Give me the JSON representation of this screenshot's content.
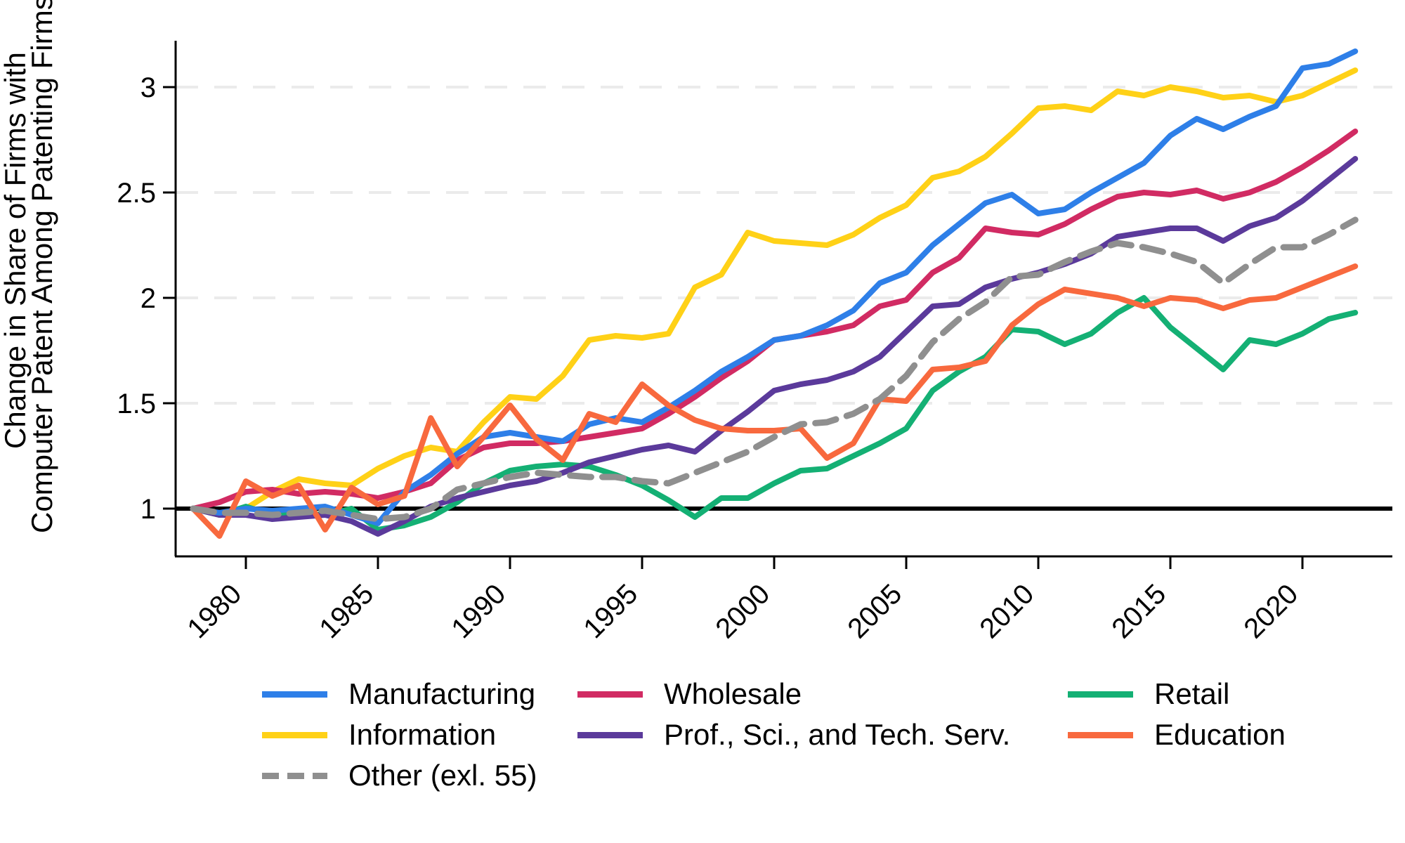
{
  "figure": {
    "background": "#FFFFFF",
    "ylabel_line1": "Change in Share of Firms with",
    "ylabel_line2": "Computer Patent Among Patenting Firms"
  },
  "chart_data": {
    "type": "line",
    "title": "",
    "xlabel": "",
    "ylabel": "Change in Share of Firms with Computer Patent Among Patenting Firms",
    "grid": "horizontal-dashed-light",
    "legend_position": "bottom",
    "reference_line_y": 1,
    "xlim": [
      1977.3,
      2023.4
    ],
    "ylim": [
      0.77,
      3.21
    ],
    "x_ticks": [
      1980,
      1985,
      1990,
      1995,
      2000,
      2005,
      2010,
      2015,
      2020
    ],
    "y_ticks": [
      "1",
      "1.5",
      "2",
      "2.5",
      "3"
    ],
    "axis_color": "#000000",
    "gridline_color": "#EBEBEB",
    "x": [
      1978,
      1979,
      1980,
      1981,
      1982,
      1983,
      1984,
      1985,
      1986,
      1987,
      1988,
      1989,
      1990,
      1991,
      1992,
      1993,
      1994,
      1995,
      1996,
      1997,
      1998,
      1999,
      2000,
      2001,
      2002,
      2003,
      2004,
      2005,
      2006,
      2007,
      2008,
      2009,
      2010,
      2011,
      2012,
      2013,
      2014,
      2015,
      2016,
      2017,
      2018,
      2019,
      2020,
      2021,
      2022
    ],
    "series": [
      {
        "name": "Manufacturing",
        "color": "#2E7FE8",
        "dash": false,
        "values": [
          1.0,
          0.98,
          1.0,
          0.99,
          1.0,
          1.01,
          0.97,
          0.93,
          1.08,
          1.16,
          1.26,
          1.34,
          1.36,
          1.34,
          1.32,
          1.4,
          1.43,
          1.41,
          1.48,
          1.56,
          1.65,
          1.72,
          1.8,
          1.82,
          1.87,
          1.94,
          2.07,
          2.12,
          2.25,
          2.35,
          2.45,
          2.49,
          2.4,
          2.42,
          2.5,
          2.57,
          2.64,
          2.77,
          2.85,
          2.8,
          2.86,
          2.91,
          3.09,
          3.11,
          3.17
        ]
      },
      {
        "name": "Wholesale",
        "color": "#D12B63",
        "dash": false,
        "values": [
          1.0,
          1.03,
          1.08,
          1.09,
          1.07,
          1.08,
          1.07,
          1.05,
          1.08,
          1.12,
          1.23,
          1.29,
          1.31,
          1.31,
          1.32,
          1.34,
          1.36,
          1.38,
          1.45,
          1.53,
          1.62,
          1.7,
          1.8,
          1.82,
          1.84,
          1.87,
          1.96,
          1.99,
          2.12,
          2.19,
          2.33,
          2.31,
          2.3,
          2.35,
          2.42,
          2.48,
          2.5,
          2.49,
          2.51,
          2.47,
          2.5,
          2.55,
          2.62,
          2.7,
          2.79
        ]
      },
      {
        "name": "Retail",
        "color": "#14B074",
        "dash": false,
        "values": [
          1.0,
          0.97,
          1.01,
          0.97,
          0.98,
          0.97,
          1.0,
          0.9,
          0.92,
          0.96,
          1.03,
          1.12,
          1.18,
          1.2,
          1.21,
          1.2,
          1.16,
          1.11,
          1.04,
          0.96,
          1.05,
          1.05,
          1.12,
          1.18,
          1.19,
          1.25,
          1.31,
          1.38,
          1.56,
          1.65,
          1.72,
          1.85,
          1.84,
          1.78,
          1.83,
          1.93,
          2.0,
          1.86,
          1.76,
          1.66,
          1.8,
          1.78,
          1.83,
          1.9,
          1.93
        ]
      },
      {
        "name": "Information",
        "color": "#FFD117",
        "dash": false,
        "values": [
          1.0,
          0.97,
          1.0,
          1.08,
          1.14,
          1.12,
          1.11,
          1.19,
          1.25,
          1.29,
          1.27,
          1.41,
          1.53,
          1.52,
          1.63,
          1.8,
          1.82,
          1.81,
          1.83,
          2.05,
          2.11,
          2.31,
          2.27,
          2.26,
          2.25,
          2.3,
          2.38,
          2.44,
          2.57,
          2.6,
          2.67,
          2.78,
          2.9,
          2.91,
          2.89,
          2.98,
          2.96,
          3.0,
          2.98,
          2.95,
          2.96,
          2.93,
          2.96,
          3.02,
          3.08
        ]
      },
      {
        "name": "Prof., Sci., and Tech. Serv.",
        "color": "#5B3A9B",
        "dash": false,
        "values": [
          1.0,
          0.97,
          0.97,
          0.95,
          0.96,
          0.97,
          0.94,
          0.88,
          0.94,
          1.01,
          1.05,
          1.08,
          1.11,
          1.13,
          1.17,
          1.22,
          1.25,
          1.28,
          1.3,
          1.27,
          1.37,
          1.46,
          1.56,
          1.59,
          1.61,
          1.65,
          1.72,
          1.84,
          1.96,
          1.97,
          2.05,
          2.09,
          2.12,
          2.16,
          2.21,
          2.29,
          2.31,
          2.33,
          2.33,
          2.27,
          2.34,
          2.38,
          2.46,
          2.56,
          2.66
        ]
      },
      {
        "name": "Education",
        "color": "#F8693E",
        "dash": false,
        "values": [
          1.0,
          0.87,
          1.13,
          1.06,
          1.11,
          0.9,
          1.1,
          1.02,
          1.06,
          1.43,
          1.2,
          1.34,
          1.49,
          1.33,
          1.23,
          1.45,
          1.41,
          1.59,
          1.49,
          1.42,
          1.38,
          1.37,
          1.37,
          1.38,
          1.24,
          1.31,
          1.52,
          1.51,
          1.66,
          1.67,
          1.7,
          1.87,
          1.97,
          2.04,
          2.02,
          2.0,
          1.96,
          2.0,
          1.99,
          1.95,
          1.99,
          2.0,
          2.05,
          2.1,
          2.15
        ]
      },
      {
        "name": "Other (exl. 55)",
        "color": "#8F8F8F",
        "dash": true,
        "values": [
          1.0,
          0.98,
          0.98,
          0.97,
          0.98,
          0.99,
          0.97,
          0.95,
          0.96,
          1.0,
          1.09,
          1.12,
          1.15,
          1.17,
          1.16,
          1.15,
          1.15,
          1.13,
          1.12,
          1.17,
          1.22,
          1.27,
          1.34,
          1.4,
          1.41,
          1.45,
          1.52,
          1.63,
          1.79,
          1.9,
          1.98,
          2.1,
          2.11,
          2.17,
          2.22,
          2.26,
          2.24,
          2.21,
          2.17,
          2.07,
          2.16,
          2.24,
          2.24,
          2.3,
          2.37
        ]
      }
    ]
  }
}
